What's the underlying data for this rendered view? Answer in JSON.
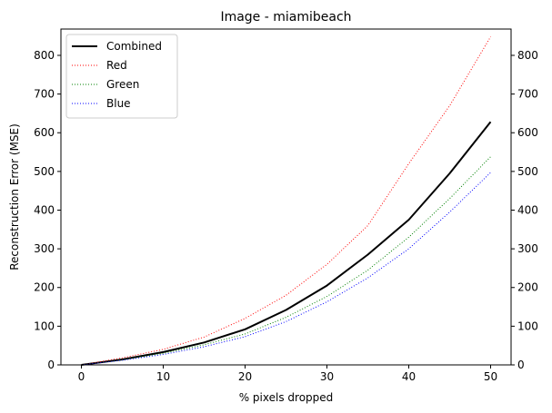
{
  "chart_data": {
    "type": "line",
    "title": "Image - miamibeach",
    "xlabel": "% pixels dropped",
    "ylabel": "Reconstruction Error (MSE)",
    "xlim": [
      -2.5,
      52.5
    ],
    "ylim": [
      0,
      868
    ],
    "xticks": [
      0,
      10,
      20,
      30,
      40,
      50
    ],
    "yticks": [
      0,
      100,
      200,
      300,
      400,
      500,
      600,
      700,
      800
    ],
    "right_axis_ticks": true,
    "grid": false,
    "legend_position": "upper-left",
    "x": [
      0,
      5,
      10,
      15,
      20,
      25,
      30,
      35,
      40,
      45,
      50
    ],
    "series": [
      {
        "name": "Combined",
        "color": "#000000",
        "style": "solid",
        "width": 2,
        "values": [
          0,
          14,
          33,
          58,
          92,
          142,
          205,
          285,
          375,
          495,
          628
        ]
      },
      {
        "name": "Red",
        "color": "#ff0000",
        "style": "dotted",
        "width": 1,
        "values": [
          0,
          18,
          40,
          72,
          120,
          180,
          260,
          360,
          520,
          670,
          848
        ]
      },
      {
        "name": "Green",
        "color": "#008000",
        "style": "dotted",
        "width": 1,
        "values": [
          0,
          13,
          30,
          52,
          80,
          123,
          177,
          245,
          330,
          430,
          538
        ]
      },
      {
        "name": "Blue",
        "color": "#0000ff",
        "style": "dotted",
        "width": 1,
        "values": [
          0,
          12,
          27,
          47,
          73,
          112,
          163,
          225,
          300,
          395,
          497
        ]
      }
    ]
  }
}
